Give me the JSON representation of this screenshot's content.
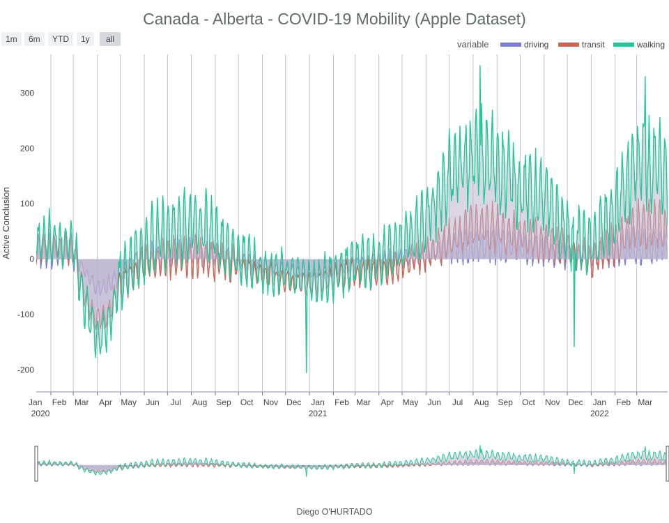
{
  "title": "Canada - Alberta - COVID-19 Mobility (Apple Dataset)",
  "caption": "Diego O'HURTADO",
  "range_buttons": [
    {
      "label": "1m",
      "active": false
    },
    {
      "label": "6m",
      "active": false
    },
    {
      "label": "YTD",
      "active": false
    },
    {
      "label": "1y",
      "active": false
    },
    {
      "label": "all",
      "active": true
    }
  ],
  "colors": {
    "driving": "#7b7fd3",
    "transit": "#cc6655",
    "walking": "#22c798",
    "fill": "#bdb5cf",
    "grid": "#aab0c6",
    "axis_text": "#444444"
  },
  "chart_data": {
    "type": "area",
    "title": "Canada - Alberta - COVID-19 Mobility (Apple Dataset)",
    "xlabel": "",
    "ylabel": "Active Conclusion",
    "legend_title": "variable",
    "legend_position": "top-right",
    "grid": true,
    "ylim": [
      -240,
      370
    ],
    "xlim": [
      "2020-01-13",
      "2022-04-10"
    ],
    "y_ticks": [
      -200,
      -100,
      0,
      100,
      200,
      300
    ],
    "x_ticks": [
      {
        "date": "2020-01-01",
        "label": "Jan",
        "year": "2020"
      },
      {
        "date": "2020-02-01",
        "label": "Feb"
      },
      {
        "date": "2020-03-01",
        "label": "Mar"
      },
      {
        "date": "2020-04-01",
        "label": "Apr"
      },
      {
        "date": "2020-05-01",
        "label": "May"
      },
      {
        "date": "2020-06-01",
        "label": "Jun"
      },
      {
        "date": "2020-07-01",
        "label": "Jul"
      },
      {
        "date": "2020-08-01",
        "label": "Aug"
      },
      {
        "date": "2020-09-01",
        "label": "Sep"
      },
      {
        "date": "2020-10-01",
        "label": "Oct"
      },
      {
        "date": "2020-11-01",
        "label": "Nov"
      },
      {
        "date": "2020-12-01",
        "label": "Dec"
      },
      {
        "date": "2021-01-01",
        "label": "Jan",
        "year": "2021"
      },
      {
        "date": "2021-02-01",
        "label": "Feb"
      },
      {
        "date": "2021-03-01",
        "label": "Mar"
      },
      {
        "date": "2021-04-01",
        "label": "Apr"
      },
      {
        "date": "2021-05-01",
        "label": "May"
      },
      {
        "date": "2021-06-01",
        "label": "Jun"
      },
      {
        "date": "2021-07-01",
        "label": "Jul"
      },
      {
        "date": "2021-08-01",
        "label": "Aug"
      },
      {
        "date": "2021-09-01",
        "label": "Sep"
      },
      {
        "date": "2021-10-01",
        "label": "Oct"
      },
      {
        "date": "2021-11-01",
        "label": "Nov"
      },
      {
        "date": "2021-12-01",
        "label": "Dec"
      },
      {
        "date": "2022-01-01",
        "label": "Jan",
        "year": "2022"
      },
      {
        "date": "2022-02-01",
        "label": "Feb"
      },
      {
        "date": "2022-03-01",
        "label": "Mar"
      }
    ],
    "series": [
      {
        "name": "driving",
        "color": "#7b7fd3",
        "points": [
          [
            "2020-01-13",
            10,
            30
          ],
          [
            "2020-02-01",
            15,
            35
          ],
          [
            "2020-03-01",
            12,
            35
          ],
          [
            "2020-03-15",
            -20,
            10
          ],
          [
            "2020-04-01",
            -55,
            20
          ],
          [
            "2020-04-15",
            -50,
            20
          ],
          [
            "2020-05-01",
            -25,
            20
          ],
          [
            "2020-06-01",
            5,
            25
          ],
          [
            "2020-07-01",
            10,
            30
          ],
          [
            "2020-08-01",
            15,
            30
          ],
          [
            "2020-09-01",
            10,
            25
          ],
          [
            "2020-10-01",
            0,
            20
          ],
          [
            "2020-11-01",
            -10,
            15
          ],
          [
            "2020-12-01",
            -20,
            12
          ],
          [
            "2021-01-01",
            -25,
            10
          ],
          [
            "2021-02-01",
            -20,
            12
          ],
          [
            "2021-03-01",
            -10,
            15
          ],
          [
            "2021-04-01",
            -5,
            20
          ],
          [
            "2021-05-01",
            0,
            20
          ],
          [
            "2021-06-01",
            10,
            25
          ],
          [
            "2021-07-01",
            20,
            30
          ],
          [
            "2021-08-01",
            25,
            35
          ],
          [
            "2021-09-01",
            25,
            35
          ],
          [
            "2021-10-01",
            20,
            30
          ],
          [
            "2021-11-01",
            15,
            30
          ],
          [
            "2021-12-01",
            5,
            25
          ],
          [
            "2022-01-01",
            5,
            25
          ],
          [
            "2022-02-01",
            15,
            30
          ],
          [
            "2022-03-01",
            25,
            35
          ],
          [
            "2022-04-10",
            25,
            35
          ]
        ]
      },
      {
        "name": "transit",
        "color": "#cc6655",
        "points": [
          [
            "2020-01-13",
            20,
            30
          ],
          [
            "2020-02-01",
            20,
            30
          ],
          [
            "2020-03-01",
            15,
            35
          ],
          [
            "2020-03-15",
            -60,
            30
          ],
          [
            "2020-04-01",
            -115,
            25
          ],
          [
            "2020-04-15",
            -100,
            25
          ],
          [
            "2020-05-01",
            -50,
            30
          ],
          [
            "2020-06-01",
            -10,
            40
          ],
          [
            "2020-07-01",
            0,
            40
          ],
          [
            "2020-08-01",
            5,
            40
          ],
          [
            "2020-09-01",
            0,
            40
          ],
          [
            "2020-10-01",
            -15,
            35
          ],
          [
            "2020-11-01",
            -30,
            30
          ],
          [
            "2020-12-01",
            -40,
            25
          ],
          [
            "2021-01-01",
            -45,
            25
          ],
          [
            "2021-02-01",
            -35,
            25
          ],
          [
            "2021-03-01",
            -25,
            30
          ],
          [
            "2021-04-01",
            -20,
            30
          ],
          [
            "2021-05-01",
            -15,
            30
          ],
          [
            "2021-06-01",
            10,
            35
          ],
          [
            "2021-07-01",
            35,
            40
          ],
          [
            "2021-08-01",
            60,
            45
          ],
          [
            "2021-09-01",
            55,
            45
          ],
          [
            "2021-10-01",
            40,
            40
          ],
          [
            "2021-11-01",
            35,
            40
          ],
          [
            "2021-12-01",
            20,
            35
          ],
          [
            "2022-01-01",
            0,
            35
          ],
          [
            "2022-02-01",
            30,
            40
          ],
          [
            "2022-03-01",
            60,
            45
          ],
          [
            "2022-04-10",
            60,
            45
          ]
        ]
      },
      {
        "name": "walking",
        "color": "#22c798",
        "points": [
          [
            "2020-01-13",
            30,
            45
          ],
          [
            "2020-02-01",
            40,
            50
          ],
          [
            "2020-03-01",
            25,
            50
          ],
          [
            "2020-03-15",
            -80,
            45
          ],
          [
            "2020-04-01",
            -145,
            40
          ],
          [
            "2020-04-15",
            -125,
            40
          ],
          [
            "2020-05-01",
            -35,
            60
          ],
          [
            "2020-06-01",
            25,
            70
          ],
          [
            "2020-07-01",
            45,
            70
          ],
          [
            "2020-08-01",
            65,
            75
          ],
          [
            "2020-09-01",
            45,
            70
          ],
          [
            "2020-10-01",
            5,
            55
          ],
          [
            "2020-11-01",
            -20,
            45
          ],
          [
            "2020-12-01",
            -25,
            45
          ],
          [
            "2021-01-01",
            -40,
            45
          ],
          [
            "2021-02-01",
            -30,
            50
          ],
          [
            "2021-03-01",
            -10,
            55
          ],
          [
            "2021-04-01",
            5,
            60
          ],
          [
            "2021-05-01",
            25,
            60
          ],
          [
            "2021-06-01",
            75,
            75
          ],
          [
            "2021-07-01",
            150,
            85
          ],
          [
            "2021-08-01",
            185,
            95
          ],
          [
            "2021-09-01",
            175,
            90
          ],
          [
            "2021-10-01",
            130,
            80
          ],
          [
            "2021-11-01",
            110,
            75
          ],
          [
            "2021-12-01",
            50,
            70
          ],
          [
            "2022-01-01",
            25,
            60
          ],
          [
            "2022-02-01",
            90,
            80
          ],
          [
            "2022-03-01",
            175,
            95
          ],
          [
            "2022-04-10",
            150,
            90
          ]
        ]
      }
    ],
    "annotations": [
      {
        "series": "walking",
        "date": "2020-12-28",
        "value": -205
      },
      {
        "series": "walking",
        "date": "2021-12-10",
        "value": -158
      },
      {
        "series": "walking",
        "date": "2021-08-10",
        "value": 350
      },
      {
        "series": "walking",
        "date": "2022-03-12",
        "value": 330
      }
    ]
  }
}
